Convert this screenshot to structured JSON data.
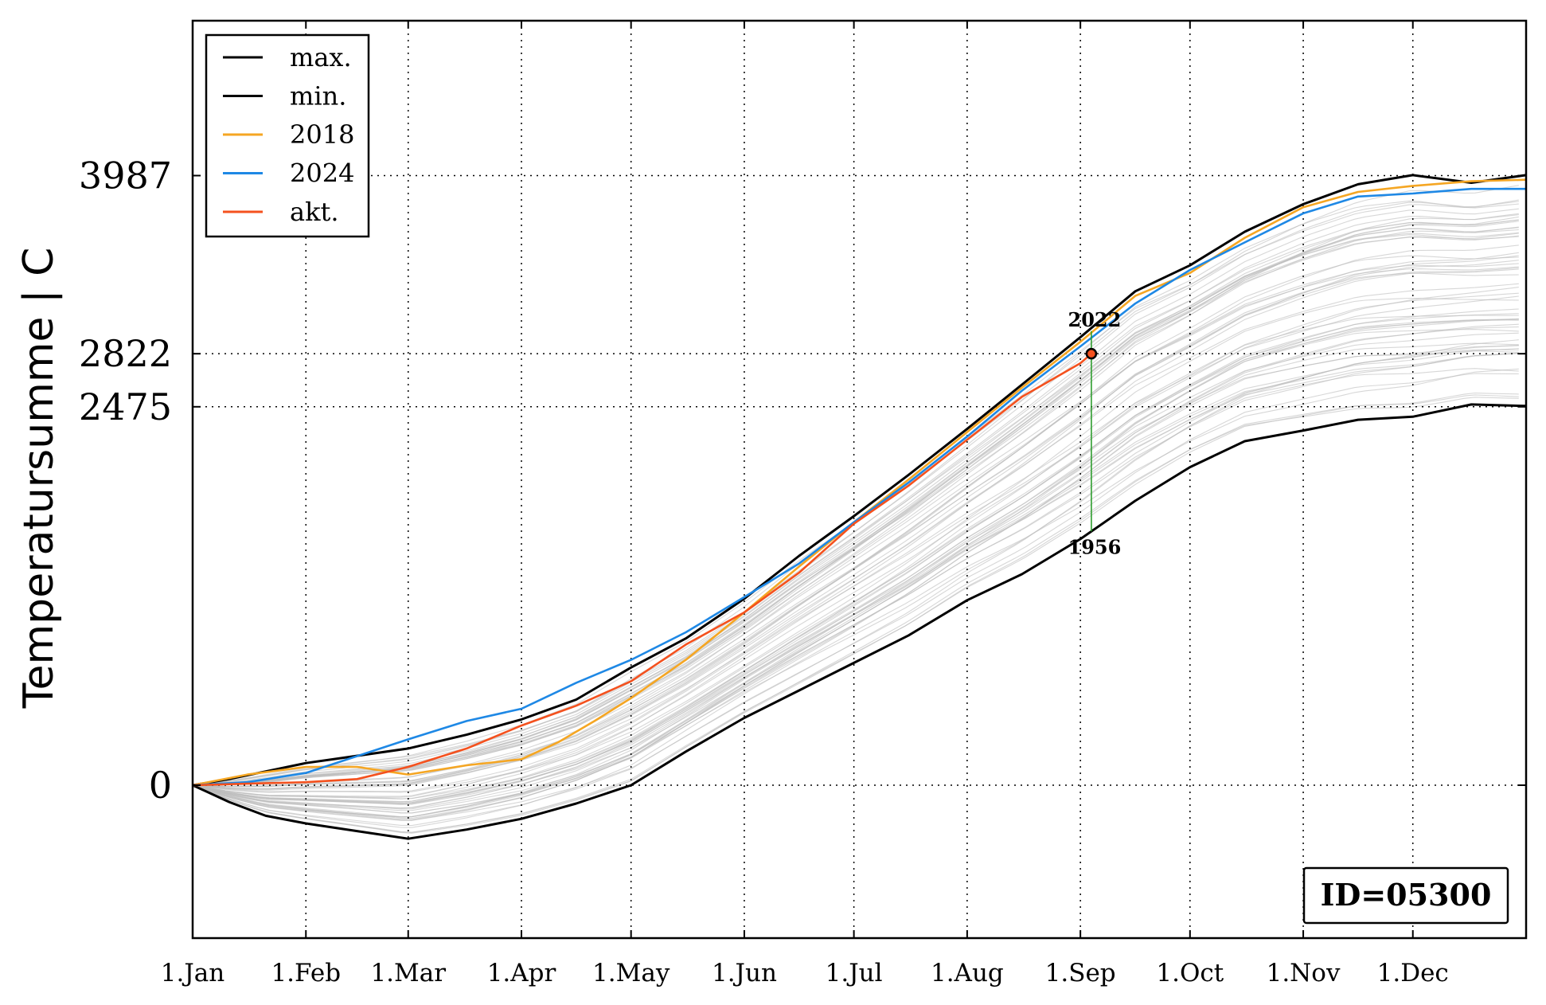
{
  "chart_data": {
    "type": "line",
    "xlabel": "",
    "ylabel": "Temperatursumme | C",
    "x_ticks": [
      "1.Jan",
      "1.Feb",
      "1.Mar",
      "1.Apr",
      "1.May",
      "1.Jun",
      "1.Jul",
      "1.Aug",
      "1.Sep",
      "1.Oct",
      "1.Nov",
      "1.Dec"
    ],
    "x_tick_days": [
      0,
      31,
      59,
      90,
      120,
      151,
      181,
      212,
      243,
      273,
      304,
      334
    ],
    "x_range": [
      0,
      365
    ],
    "y_ticks": [
      0,
      2475,
      2822,
      3987
    ],
    "ylim": [
      -1000,
      5000
    ],
    "grid": true,
    "legend_position": "top-left",
    "series": [
      {
        "name": "max.",
        "color": "#000000",
        "x": [
          0,
          10,
          20,
          31,
          40,
          59,
          75,
          90,
          105,
          120,
          135,
          151,
          166,
          181,
          196,
          212,
          227,
          243,
          258,
          273,
          288,
          304,
          319,
          334,
          350,
          365
        ],
        "y": [
          0,
          40,
          90,
          145,
          175,
          240,
          330,
          430,
          560,
          770,
          960,
          1220,
          1500,
          1760,
          2030,
          2330,
          2620,
          2930,
          3230,
          3400,
          3620,
          3800,
          3930,
          3990,
          3940,
          3990
        ]
      },
      {
        "name": "min.",
        "color": "#000000",
        "x": [
          0,
          10,
          20,
          31,
          45,
          59,
          75,
          90,
          105,
          120,
          135,
          151,
          166,
          181,
          196,
          212,
          227,
          243,
          258,
          273,
          288,
          304,
          319,
          334,
          350,
          365
        ],
        "y": [
          0,
          -110,
          -200,
          -250,
          -300,
          -350,
          -290,
          -220,
          -120,
          0,
          220,
          440,
          620,
          800,
          980,
          1210,
          1380,
          1610,
          1860,
          2080,
          2250,
          2320,
          2390,
          2410,
          2490,
          2480
        ]
      },
      {
        "name": "2018",
        "color": "#f5a623",
        "x": [
          0,
          15,
          31,
          45,
          59,
          75,
          90,
          100,
          110,
          120,
          135,
          151,
          166,
          181,
          196,
          212,
          227,
          243,
          258,
          273,
          288,
          304,
          319,
          334,
          350,
          365
        ],
        "y": [
          0,
          70,
          120,
          120,
          70,
          130,
          170,
          280,
          420,
          570,
          820,
          1130,
          1430,
          1720,
          2000,
          2310,
          2600,
          2900,
          3200,
          3350,
          3580,
          3780,
          3880,
          3920,
          3950,
          3960
        ]
      },
      {
        "name": "2024",
        "color": "#1e88e5",
        "x": [
          0,
          15,
          31,
          45,
          59,
          75,
          90,
          105,
          120,
          135,
          151,
          166,
          181,
          196,
          212,
          227,
          243,
          258,
          273,
          288,
          304,
          319,
          334,
          350,
          365
        ],
        "y": [
          0,
          20,
          80,
          190,
          300,
          420,
          500,
          670,
          820,
          1000,
          1230,
          1450,
          1720,
          1980,
          2280,
          2580,
          2870,
          3150,
          3370,
          3550,
          3740,
          3850,
          3870,
          3900,
          3900
        ]
      },
      {
        "name": "akt.",
        "color": "#f4511e",
        "x": [
          0,
          15,
          31,
          45,
          59,
          75,
          90,
          105,
          120,
          135,
          151,
          166,
          181,
          196,
          212,
          227,
          243,
          246
        ],
        "y": [
          0,
          10,
          20,
          40,
          120,
          240,
          390,
          520,
          680,
          920,
          1130,
          1390,
          1710,
          1960,
          2260,
          2540,
          2760,
          2822
        ]
      }
    ],
    "annotations": {
      "current_point": {
        "x": 246,
        "y": 2822
      },
      "top_label": "2022",
      "top_value": 2970,
      "bottom_label": "1956",
      "bottom_value": 1660,
      "id_label": "ID=05300"
    },
    "background_years_count": 60
  }
}
